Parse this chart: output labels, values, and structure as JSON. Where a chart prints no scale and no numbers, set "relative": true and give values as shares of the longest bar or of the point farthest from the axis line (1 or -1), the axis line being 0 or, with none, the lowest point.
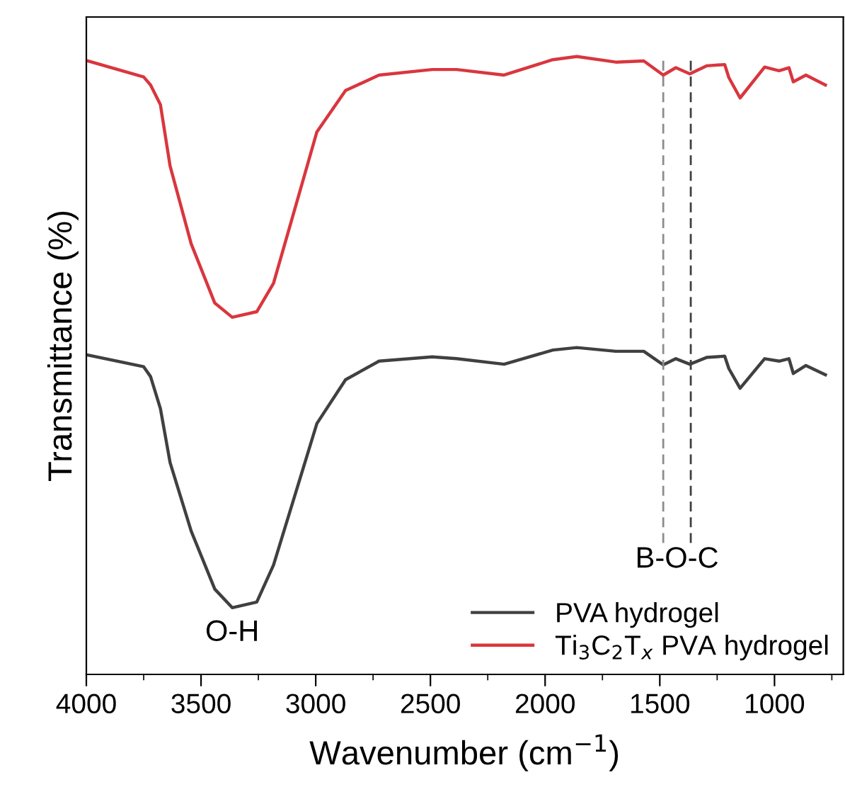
{
  "chart_data": {
    "type": "line",
    "relative": true,
    "xlabel": "Wavenumber (cm$^{−1}$)",
    "ylabel": "Transmittance (%)",
    "x": [
      3994,
      3750,
      3720,
      3677,
      3635,
      3543,
      3440,
      3364,
      3257,
      3184,
      3099,
      2995,
      2870,
      2724,
      2492,
      2386,
      2179,
      1966,
      1862,
      1692,
      1570,
      1485,
      1430,
      1369,
      1296,
      1217,
      1199,
      1150,
      1043,
      980,
      937,
      918,
      863,
      778
    ],
    "series": [
      {
        "name": "PVA hydrogel",
        "color": "#404040",
        "values": [
          0.517,
          0.498,
          0.482,
          0.43,
          0.343,
          0.232,
          0.138,
          0.108,
          0.117,
          0.177,
          0.28,
          0.406,
          0.477,
          0.507,
          0.514,
          0.511,
          0.502,
          0.525,
          0.529,
          0.523,
          0.523,
          0.501,
          0.511,
          0.502,
          0.513,
          0.515,
          0.495,
          0.463,
          0.511,
          0.507,
          0.511,
          0.487,
          0.5,
          0.485
        ]
      },
      {
        "name": "Ti$_{3}$C$_{2}$T$_{x}$ PVA hydrogel",
        "color": "#d9363e",
        "values": [
          0.993,
          0.967,
          0.954,
          0.922,
          0.823,
          0.697,
          0.601,
          0.578,
          0.587,
          0.633,
          0.743,
          0.878,
          0.945,
          0.97,
          0.979,
          0.979,
          0.97,
          0.995,
          1.0,
          0.991,
          0.993,
          0.97,
          0.982,
          0.972,
          0.985,
          0.987,
          0.966,
          0.933,
          0.983,
          0.977,
          0.982,
          0.959,
          0.97,
          0.954
        ]
      }
    ],
    "xlim": [
      4000,
      700
    ],
    "xticks": [
      4000,
      {
        "value": 3750,
        "label": null
      },
      3500,
      {
        "value": 3250,
        "label": null
      },
      3000,
      {
        "value": 2750,
        "label": null
      },
      2500,
      {
        "value": 2250,
        "label": null
      },
      2000,
      {
        "value": 1750,
        "label": null
      },
      1500,
      {
        "value": 1250,
        "label": null
      },
      1000,
      {
        "value": 750,
        "label": null
      }
    ],
    "ref_lines": [
      {
        "axis": "x",
        "value": 1485,
        "color": "#8c8c8c",
        "line_style": "dashed"
      },
      {
        "axis": "x",
        "value": 1365,
        "color": "#404040",
        "line_style": "dashed"
      }
    ],
    "annotations": [
      {
        "text": "O-H",
        "x": 3364,
        "y": 0.108
      },
      "B-O-C"
    ],
    "legend": "bottom right",
    "grid": false,
    "tick_labels": "x"
  }
}
